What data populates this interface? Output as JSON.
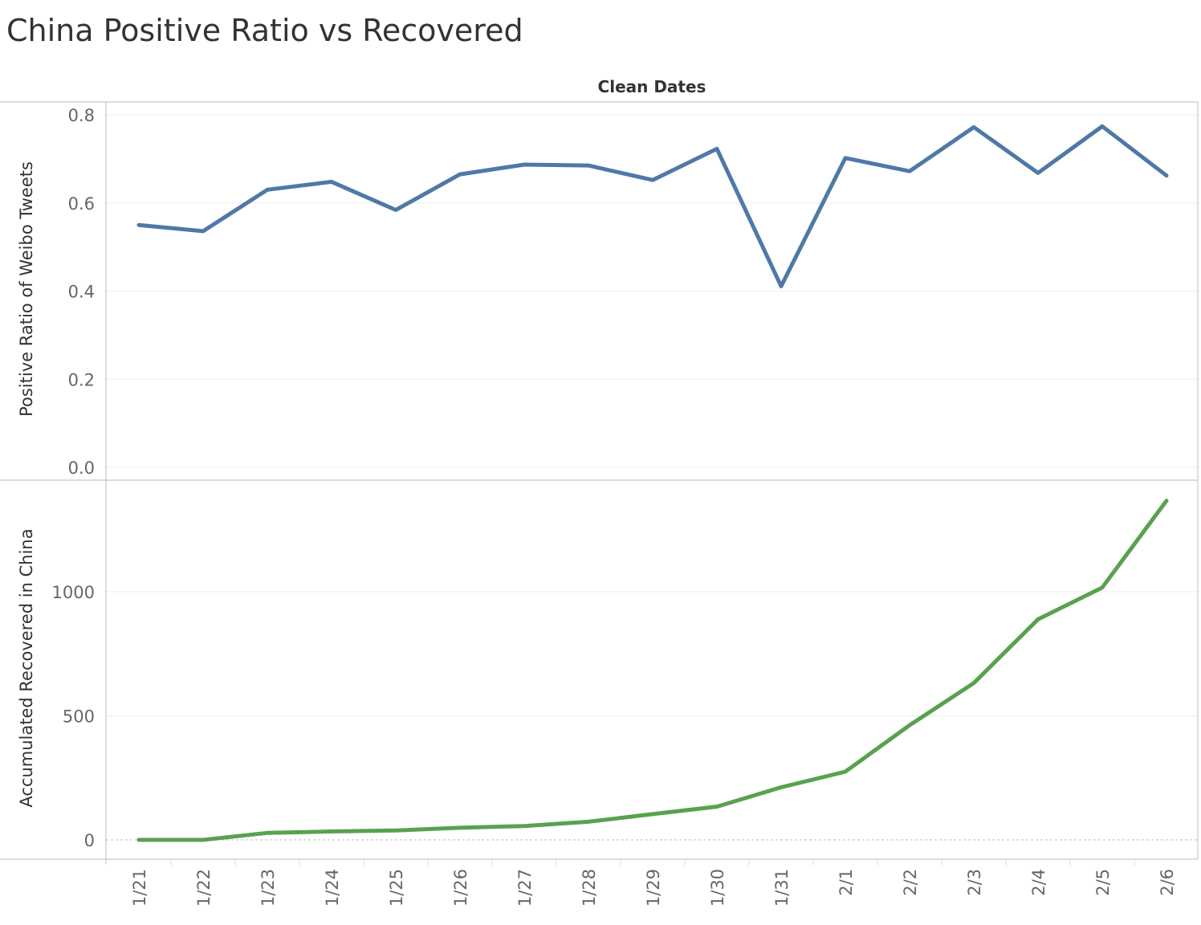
{
  "title": "China Positive Ratio vs Recovered",
  "colors": {
    "ratio_line": "#4e79a7",
    "recovered_line": "#59a14f",
    "gridline": "#eeeeee",
    "axis": "#c8c8c8"
  },
  "chart_data": {
    "type": "line",
    "title": "China Positive Ratio vs Recovered",
    "xlabel": "Clean Dates",
    "categories": [
      "1/21",
      "1/22",
      "1/23",
      "1/24",
      "1/25",
      "1/26",
      "1/27",
      "1/28",
      "1/29",
      "1/30",
      "1/31",
      "2/1",
      "2/2",
      "2/3",
      "2/4",
      "2/5",
      "2/6"
    ],
    "panels": [
      {
        "ylabel": "Positive Ratio of Weibo Tweets",
        "ylim": [
          0,
          0.8
        ],
        "yticks": [
          0.0,
          0.2,
          0.4,
          0.6,
          0.8
        ],
        "ytick_labels": [
          "0.0",
          "0.2",
          "0.4",
          "0.6",
          "0.8"
        ],
        "values": [
          0.55,
          0.536,
          0.63,
          0.648,
          0.584,
          0.665,
          0.687,
          0.685,
          0.652,
          0.723,
          0.411,
          0.702,
          0.672,
          0.772,
          0.668,
          0.774,
          0.662
        ]
      },
      {
        "ylabel": "Accumulated Recovered in China",
        "ylim": [
          0,
          1300
        ],
        "yticks": [
          0,
          500,
          1000
        ],
        "ytick_labels": [
          "0",
          "500",
          "1000"
        ],
        "values": [
          0,
          0,
          28,
          34,
          38,
          49,
          56,
          73,
          104,
          134,
          212,
          275,
          462,
          632,
          889,
          1017,
          1367
        ]
      }
    ],
    "grid": true
  }
}
